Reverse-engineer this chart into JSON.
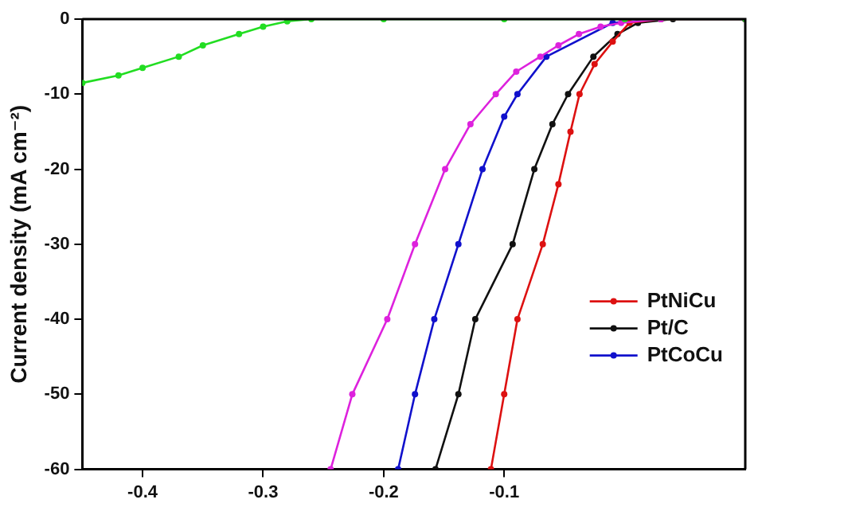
{
  "chart_data": {
    "type": "line",
    "ylabel": "Current density (mA cm⁻²)",
    "xlim": [
      -0.45,
      0.1
    ],
    "xticks": [
      -0.4,
      -0.3,
      -0.2,
      -0.1
    ],
    "ylim": [
      -60,
      0
    ],
    "yticks": [
      0,
      -10,
      -20,
      -30,
      -40,
      -50,
      -60
    ],
    "grid": false,
    "legend": "bottom right",
    "marker": "circle",
    "line_style": "solid",
    "series": [
      {
        "color": "#22dd22",
        "x": [
          -0.45,
          -0.42,
          -0.4,
          -0.37,
          -0.35,
          -0.32,
          -0.3,
          -0.28,
          -0.26,
          -0.2,
          -0.1,
          0,
          0.1
        ],
        "values": [
          -8.5,
          -7.5,
          -6.5,
          -5,
          -3.5,
          -2,
          -1,
          -0.3,
          0,
          0,
          0,
          0,
          0
        ]
      },
      {
        "color": "#dd22dd",
        "x": [
          -0.244,
          -0.226,
          -0.197,
          -0.174,
          -0.149,
          -0.128,
          -0.107,
          -0.09,
          -0.07,
          -0.055,
          -0.038,
          -0.02,
          -0.003,
          0.03,
          0.1
        ],
        "values": [
          -60,
          -50,
          -40,
          -30,
          -20,
          -14,
          -10,
          -7,
          -5,
          -3.5,
          -2,
          -1,
          -0.5,
          0,
          0
        ]
      },
      {
        "name": "PtNiCu",
        "color": "#dd1111",
        "x": [
          -0.111,
          -0.1,
          -0.089,
          -0.068,
          -0.055,
          -0.045,
          -0.0375,
          -0.025,
          -0.01,
          0.004,
          0.03,
          0.1
        ],
        "values": [
          -60,
          -50,
          -40,
          -30,
          -22,
          -15,
          -10,
          -6,
          -3,
          -0.5,
          0,
          0
        ]
      },
      {
        "name": "Pt/C",
        "color": "#111111",
        "x": [
          -0.157,
          -0.138,
          -0.124,
          -0.093,
          -0.075,
          -0.06,
          -0.047,
          -0.026,
          -0.006,
          0.011,
          0.04,
          0.1
        ],
        "values": [
          -60,
          -50,
          -40,
          -30,
          -20,
          -14,
          -10,
          -5,
          -2,
          -0.5,
          0,
          0
        ]
      },
      {
        "name": "PtCoCu",
        "color": "#1111cc",
        "x": [
          -0.188,
          -0.174,
          -0.158,
          -0.138,
          -0.118,
          -0.1,
          -0.089,
          -0.065,
          -0.01,
          0.03,
          0.1
        ],
        "values": [
          -60,
          -50,
          -40,
          -30,
          -20,
          -13,
          -10,
          -5,
          -0.5,
          0,
          0
        ]
      }
    ]
  }
}
